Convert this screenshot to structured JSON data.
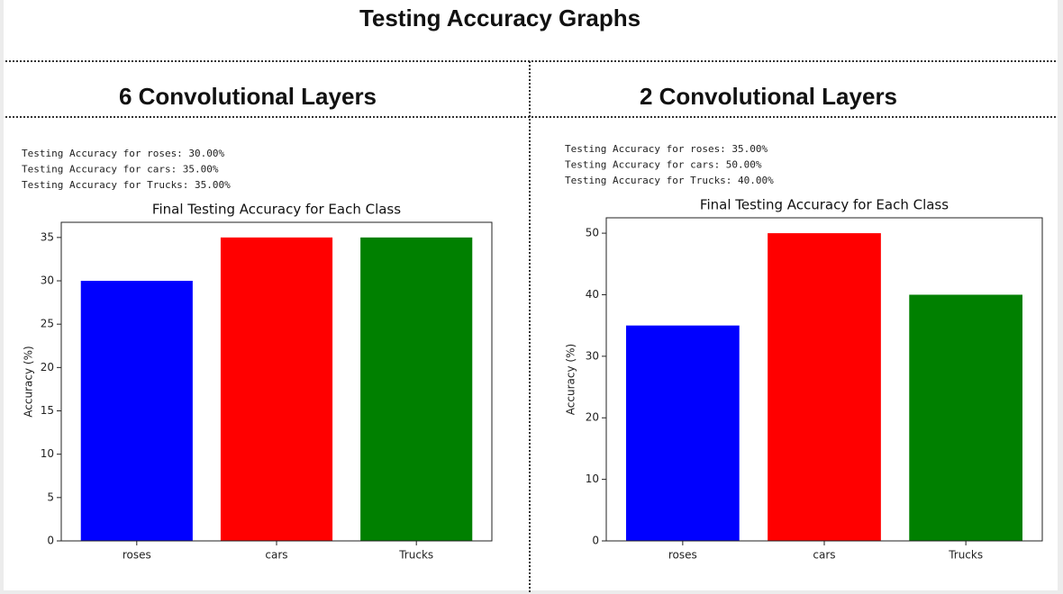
{
  "title": "Testing Accuracy Graphs",
  "chart_data": [
    {
      "type": "bar",
      "heading": "6 Convolutional Layers",
      "output_lines": [
        "Testing Accuracy for roses: 30.00%",
        "Testing Accuracy for cars: 35.00%",
        "Testing Accuracy for Trucks: 35.00%"
      ],
      "title": "Final Testing Accuracy for Each Class",
      "y_label": "Accuracy (%)",
      "categories": [
        "roses",
        "cars",
        "Trucks"
      ],
      "values": [
        30,
        35,
        35
      ],
      "colors": [
        "#0000ff",
        "#ff0000",
        "#008000"
      ],
      "ylim": [
        0,
        36.75
      ],
      "yticks": [
        0,
        5,
        10,
        15,
        20,
        25,
        30,
        35
      ]
    },
    {
      "type": "bar",
      "heading": "2 Convolutional Layers",
      "output_lines": [
        "Testing Accuracy for roses: 35.00%",
        "Testing Accuracy for cars: 50.00%",
        "Testing Accuracy for Trucks: 40.00%"
      ],
      "title": "Final Testing Accuracy for Each Class",
      "y_label": "Accuracy (%)",
      "categories": [
        "roses",
        "cars",
        "Trucks"
      ],
      "values": [
        35,
        50,
        40
      ],
      "colors": [
        "#0000ff",
        "#ff0000",
        "#008000"
      ],
      "ylim": [
        0,
        52.5
      ],
      "yticks": [
        0,
        10,
        20,
        30,
        40,
        50
      ]
    }
  ]
}
